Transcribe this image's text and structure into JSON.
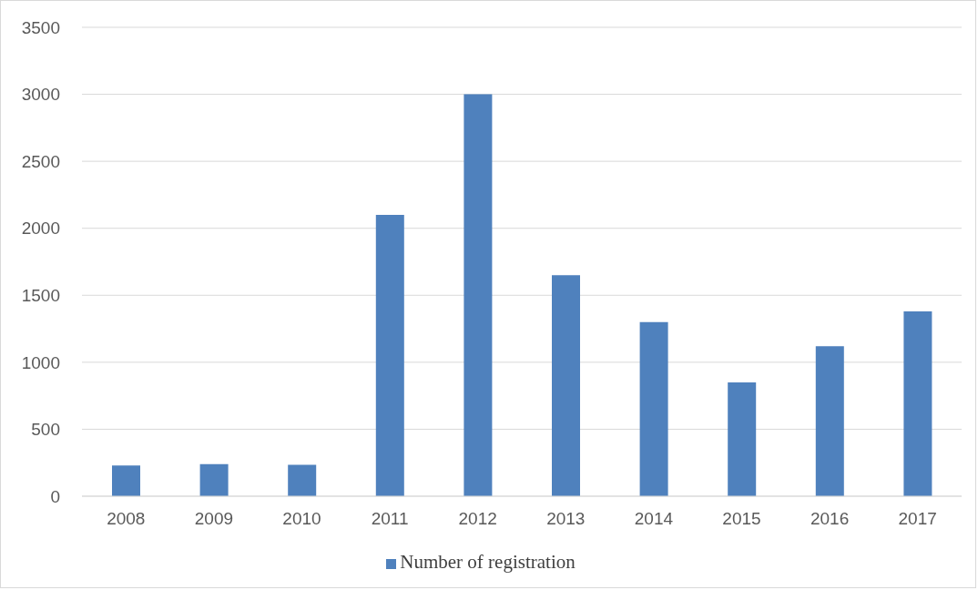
{
  "chart_data": {
    "type": "bar",
    "categories": [
      "2008",
      "2009",
      "2010",
      "2011",
      "2012",
      "2013",
      "2014",
      "2015",
      "2016",
      "2017"
    ],
    "series": [
      {
        "name": "Number of registration",
        "color": "#4f81bd",
        "values": [
          230,
          240,
          235,
          2100,
          3000,
          1650,
          1300,
          850,
          1120,
          1380
        ]
      }
    ],
    "ylim": [
      0,
      3500
    ],
    "yticks": [
      0,
      500,
      1000,
      1500,
      2000,
      2500,
      3000,
      3500
    ],
    "grid": "y",
    "legend": "bottom"
  }
}
